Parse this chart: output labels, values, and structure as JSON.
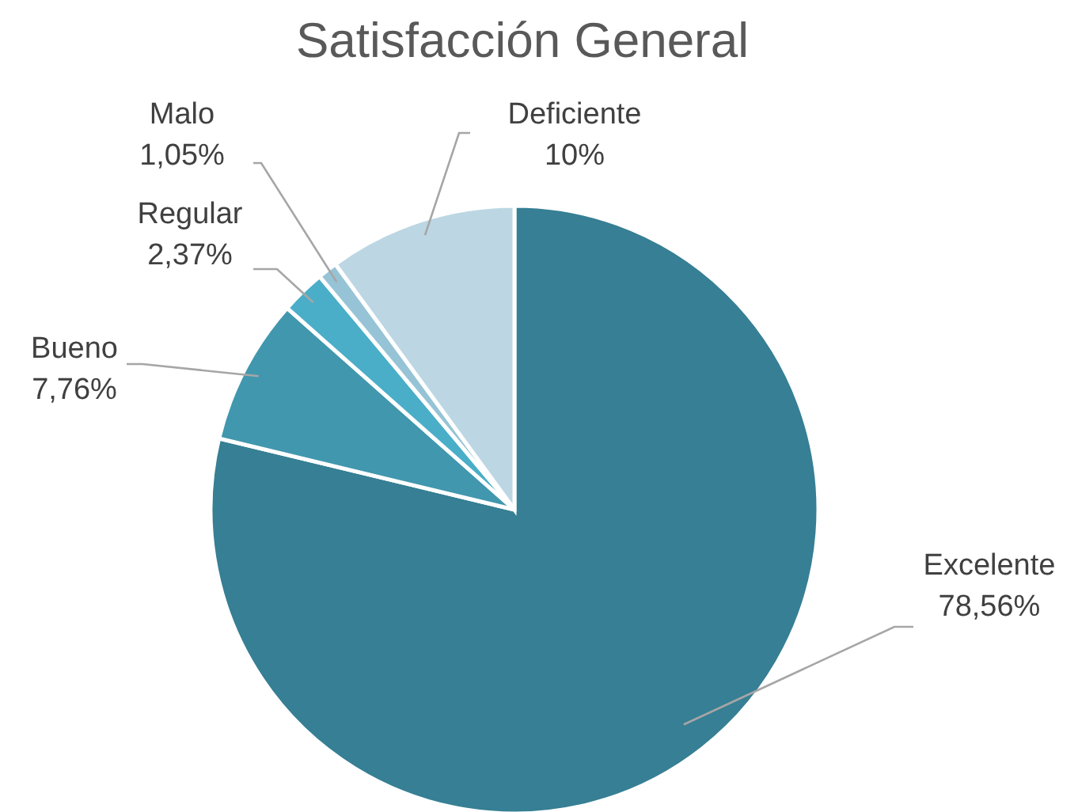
{
  "chart_data": {
    "type": "pie",
    "title": "Satisfacción General",
    "categories": [
      "Excelente",
      "Bueno",
      "Regular",
      "Malo",
      "Deficiente"
    ],
    "values": [
      78.56,
      7.76,
      2.37,
      1.05,
      10
    ],
    "colors": [
      "#367f94",
      "#4197ae",
      "#4aaec8",
      "#96c4d6",
      "#bcd7e3"
    ],
    "value_labels": [
      "78,56%",
      "7,76%",
      "2,37%",
      "1,05%",
      "10%"
    ],
    "legend": false
  }
}
